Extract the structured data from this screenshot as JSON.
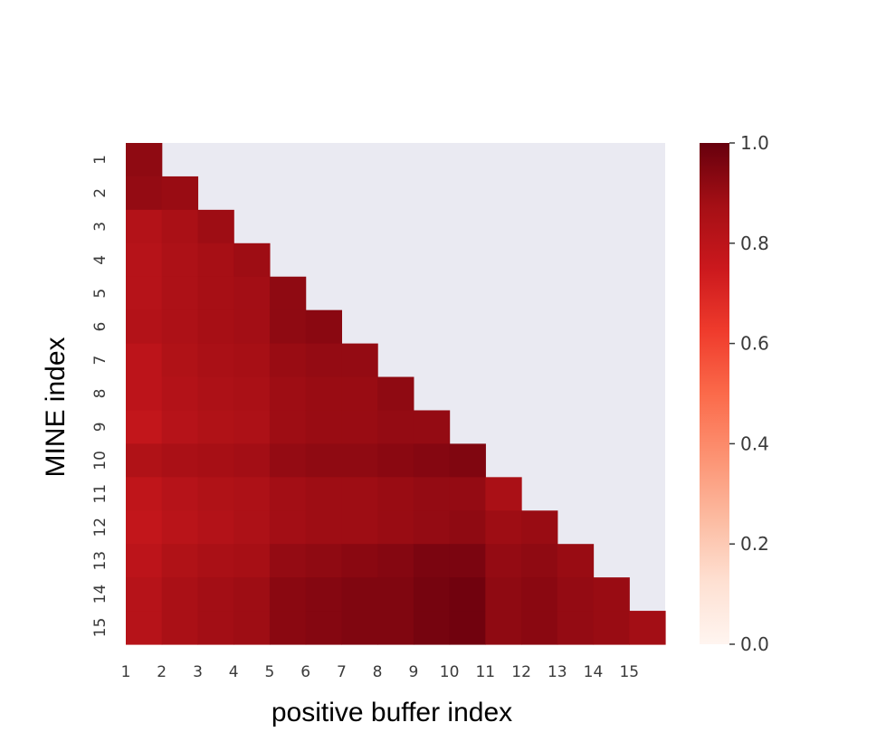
{
  "chart_data": {
    "type": "heatmap",
    "xlabel": "positive buffer index",
    "ylabel": "MINE index",
    "x_categories": [
      "1",
      "2",
      "3",
      "4",
      "5",
      "6",
      "7",
      "8",
      "9",
      "10",
      "11",
      "12",
      "13",
      "14",
      "15"
    ],
    "y_categories": [
      "1",
      "2",
      "3",
      "4",
      "5",
      "6",
      "7",
      "8",
      "9",
      "10",
      "11",
      "12",
      "13",
      "14",
      "15"
    ],
    "mask": "upper-triangle",
    "mask_color": "#eaeaf2",
    "colormap": "Reds",
    "vmin": 0.0,
    "vmax": 1.0,
    "colorbar_ticks": [
      "0.0",
      "0.2",
      "0.4",
      "0.6",
      "0.8",
      "1.0"
    ],
    "values": [
      [
        0.92
      ],
      [
        0.91,
        0.9
      ],
      [
        0.83,
        0.86,
        0.89
      ],
      [
        0.82,
        0.85,
        0.87,
        0.89
      ],
      [
        0.82,
        0.85,
        0.87,
        0.88,
        0.92
      ],
      [
        0.83,
        0.85,
        0.87,
        0.88,
        0.92,
        0.93
      ],
      [
        0.8,
        0.84,
        0.86,
        0.87,
        0.9,
        0.91,
        0.91
      ],
      [
        0.8,
        0.83,
        0.85,
        0.86,
        0.89,
        0.9,
        0.9,
        0.92
      ],
      [
        0.78,
        0.82,
        0.84,
        0.85,
        0.89,
        0.9,
        0.9,
        0.91,
        0.91
      ],
      [
        0.84,
        0.86,
        0.87,
        0.88,
        0.91,
        0.92,
        0.92,
        0.93,
        0.94,
        0.95
      ],
      [
        0.79,
        0.82,
        0.84,
        0.85,
        0.88,
        0.89,
        0.89,
        0.9,
        0.91,
        0.91,
        0.86
      ],
      [
        0.78,
        0.81,
        0.83,
        0.85,
        0.88,
        0.89,
        0.89,
        0.9,
        0.91,
        0.92,
        0.89,
        0.9
      ],
      [
        0.8,
        0.84,
        0.86,
        0.87,
        0.91,
        0.92,
        0.93,
        0.94,
        0.96,
        0.96,
        0.91,
        0.92,
        0.9
      ],
      [
        0.82,
        0.86,
        0.88,
        0.89,
        0.93,
        0.94,
        0.95,
        0.95,
        0.97,
        0.98,
        0.92,
        0.93,
        0.91,
        0.9
      ],
      [
        0.82,
        0.86,
        0.88,
        0.89,
        0.93,
        0.94,
        0.95,
        0.95,
        0.97,
        0.98,
        0.92,
        0.93,
        0.91,
        0.9,
        0.88
      ]
    ]
  }
}
